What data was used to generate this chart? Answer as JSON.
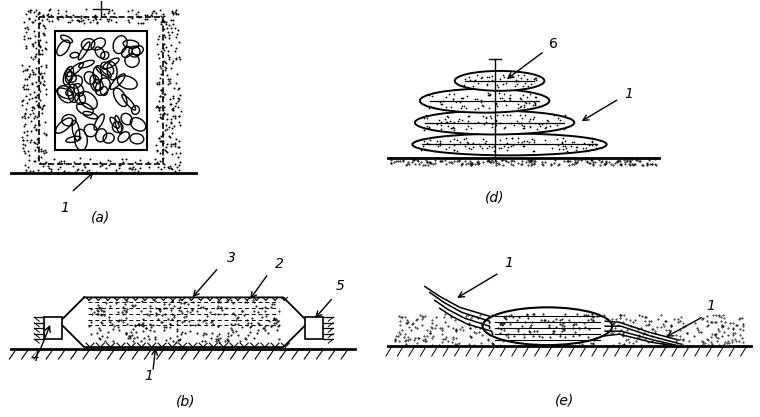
{
  "fig_width": 7.6,
  "fig_height": 4.17,
  "dpi": 100,
  "bg_color": "#ffffff",
  "line_color": "#000000",
  "label_a": "(a)",
  "label_b": "(b)",
  "label_d": "(d)",
  "label_e": "(e)"
}
